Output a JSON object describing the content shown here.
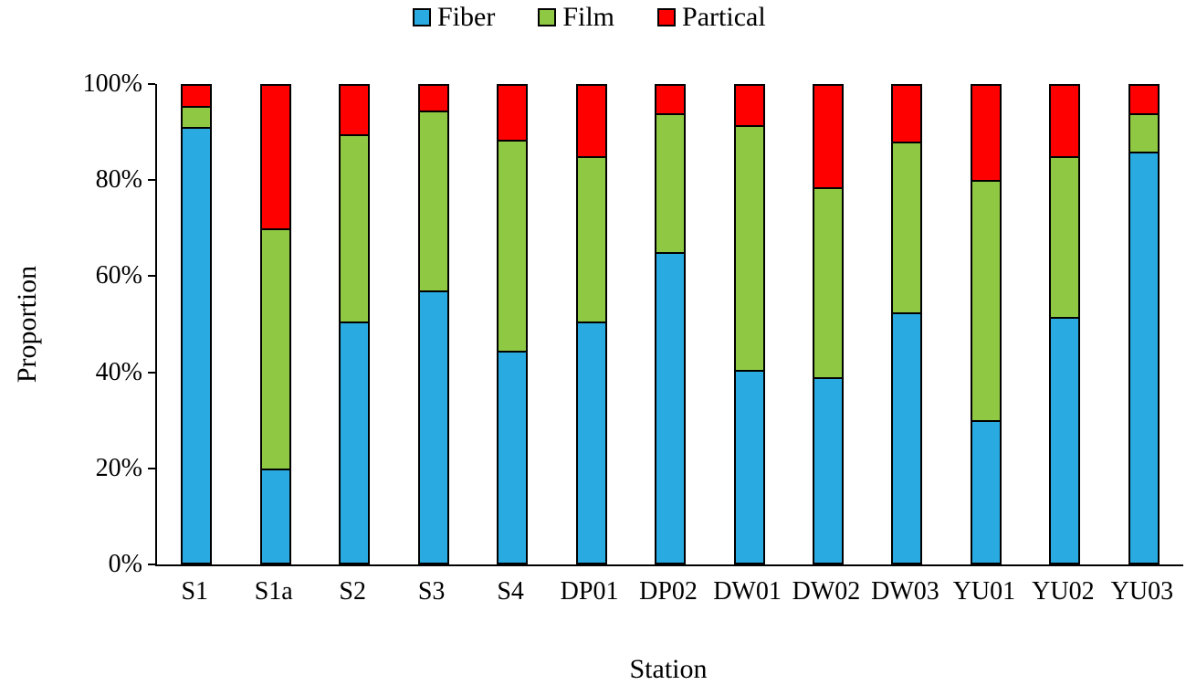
{
  "figure": {
    "y_axis_title": "Proportion",
    "x_axis_title": "Station",
    "y_tick_labels": [
      "0%",
      "20%",
      "40%",
      "60%",
      "80%",
      "100%"
    ]
  },
  "legend": {
    "items": [
      {
        "label": "Fiber",
        "color": "#29ABE2"
      },
      {
        "label": "Film",
        "color": "#8FC843"
      },
      {
        "label": "Partical",
        "color": "#FE0000"
      }
    ]
  },
  "chart_data": {
    "type": "bar",
    "stacked": true,
    "title": "",
    "xlabel": "Station",
    "ylabel": "Proportion",
    "ylim": [
      0,
      100
    ],
    "y_ticks_percent": [
      0,
      20,
      40,
      60,
      80,
      100
    ],
    "grid": false,
    "legend_position": "top-center",
    "bar_border_color": "#000000",
    "categories": [
      "S1",
      "S1a",
      "S2",
      "S3",
      "S4",
      "DP01",
      "DP02",
      "DW01",
      "DW02",
      "DW03",
      "YU01",
      "YU02",
      "YU03"
    ],
    "series": [
      {
        "name": "Fiber",
        "color": "#29ABE2",
        "values": [
          91,
          20,
          50.5,
          57,
          44.5,
          50.5,
          65,
          40.5,
          39,
          52.5,
          30,
          51.5,
          86
        ]
      },
      {
        "name": "Film",
        "color": "#8FC843",
        "values": [
          4.5,
          50,
          39,
          37.5,
          44,
          34.5,
          29,
          51,
          39.5,
          35.5,
          50,
          33.5,
          8
        ]
      },
      {
        "name": "Partical",
        "color": "#FE0000",
        "values": [
          4.5,
          30,
          10.5,
          5.5,
          11.5,
          15,
          6,
          8.5,
          21.5,
          12,
          20,
          15,
          6
        ]
      }
    ]
  }
}
